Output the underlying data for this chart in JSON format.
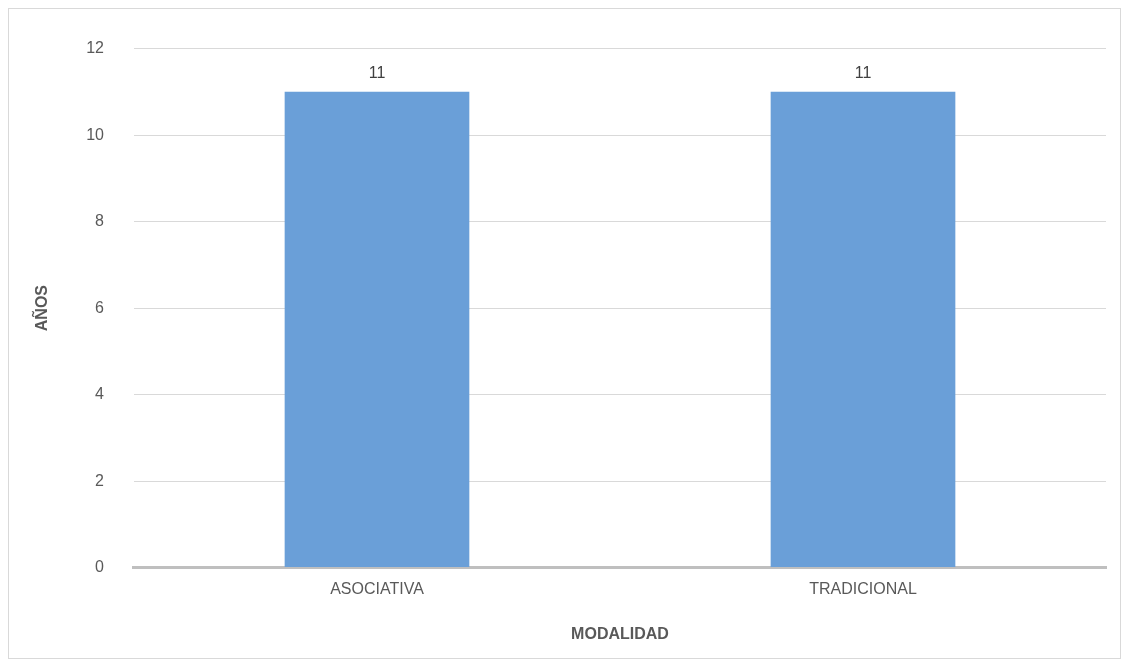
{
  "chart_data": {
    "type": "bar",
    "xlabel": "MODALIDAD",
    "ylabel": "AÑOS",
    "categories": [
      "ASOCIATIVA",
      "TRADICIONAL"
    ],
    "values": [
      11,
      11
    ],
    "color": "#6a9fd8",
    "ylim": [
      0,
      12
    ],
    "yticks": [
      0,
      2,
      4,
      6,
      8,
      10,
      12
    ],
    "grid": "y",
    "data_labels": true
  }
}
